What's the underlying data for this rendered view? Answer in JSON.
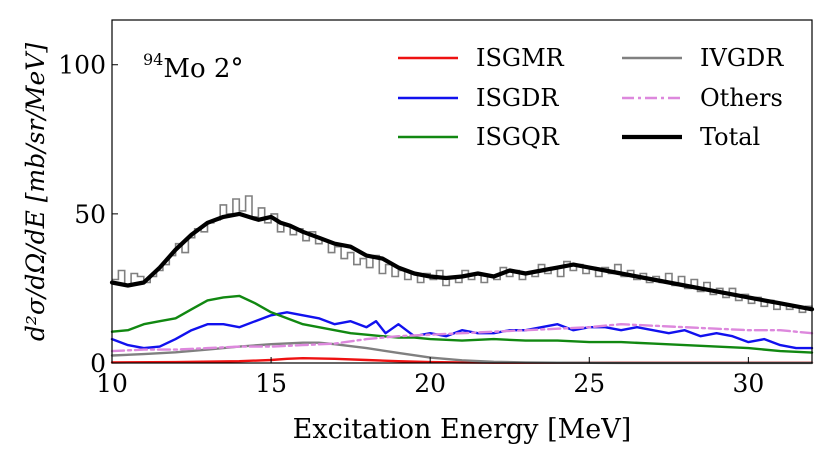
{
  "chart_data": {
    "type": "line",
    "annotation": {
      "nucleus_mass": "94",
      "nucleus": "Mo",
      "angle": "2°"
    },
    "xlabel": "Excitation Energy [MeV]",
    "ylabel": "d²σ/dΩ/dE [mb/sr/MeV]",
    "xlim": [
      10,
      32
    ],
    "ylim": [
      0,
      115
    ],
    "x_ticks": [
      10,
      15,
      20,
      25,
      30
    ],
    "y_ticks": [
      0,
      50,
      100
    ],
    "legend_position": "top-right",
    "data": {
      "name": "Data",
      "color": "#808080",
      "style": "step",
      "x": [
        10.0,
        10.2,
        10.4,
        10.6,
        10.8,
        11.0,
        11.2,
        11.4,
        11.6,
        11.8,
        12.0,
        12.2,
        12.4,
        12.6,
        12.8,
        13.0,
        13.2,
        13.4,
        13.6,
        13.8,
        14.0,
        14.2,
        14.4,
        14.6,
        14.8,
        15.0,
        15.2,
        15.4,
        15.6,
        15.8,
        16.0,
        16.2,
        16.4,
        16.6,
        16.8,
        17.0,
        17.2,
        17.4,
        17.6,
        17.8,
        18.0,
        18.2,
        18.4,
        18.6,
        18.8,
        19.0,
        19.2,
        19.4,
        19.6,
        19.8,
        20.0,
        20.2,
        20.4,
        20.6,
        20.8,
        21.0,
        21.2,
        21.4,
        21.6,
        21.8,
        22.0,
        22.2,
        22.4,
        22.6,
        22.8,
        23.0,
        23.2,
        23.4,
        23.6,
        23.8,
        24.0,
        24.2,
        24.4,
        24.6,
        24.8,
        25.0,
        25.2,
        25.4,
        25.6,
        25.8,
        26.0,
        26.2,
        26.4,
        26.6,
        26.8,
        27.0,
        27.2,
        27.4,
        27.6,
        27.8,
        28.0,
        28.2,
        28.4,
        28.6,
        28.8,
        29.0,
        29.2,
        29.4,
        29.6,
        29.8,
        30.0,
        30.2,
        30.4,
        30.6,
        30.8,
        31.0,
        31.2,
        31.4,
        31.6,
        31.8,
        32.0
      ],
      "y": [
        28,
        31,
        26,
        30,
        29,
        27,
        29,
        31,
        33,
        36,
        40,
        37,
        42,
        45,
        44,
        47,
        48,
        53,
        50,
        55,
        51,
        56,
        49,
        52,
        47,
        50,
        44,
        46,
        43,
        45,
        41,
        44,
        40,
        41,
        37,
        39,
        35,
        37,
        33,
        35,
        32,
        36,
        30,
        33,
        29,
        31,
        28,
        30,
        27,
        30,
        28,
        31,
        26,
        29,
        27,
        31,
        28,
        30,
        27,
        29,
        28,
        32,
        29,
        31,
        28,
        30,
        29,
        33,
        30,
        32,
        29,
        34,
        31,
        33,
        30,
        32,
        29,
        32,
        30,
        33,
        29,
        31,
        28,
        30,
        27,
        29,
        27,
        30,
        26,
        29,
        25,
        28,
        24,
        27,
        23,
        25,
        22,
        25,
        21,
        23,
        20,
        22,
        19,
        21,
        18,
        20,
        18,
        19,
        17,
        19,
        18
      ]
    },
    "series": [
      {
        "name": "ISGMR",
        "color": "#ee1111",
        "style": "solid",
        "x": [
          10,
          12,
          14,
          15,
          15.5,
          16,
          17,
          18,
          19,
          20,
          21,
          22,
          24,
          26,
          28,
          30,
          32
        ],
        "y": [
          0.2,
          0.3,
          0.6,
          1.0,
          1.4,
          1.6,
          1.4,
          1.0,
          0.6,
          0.3,
          0.2,
          0.1,
          0.1,
          0.1,
          0.1,
          0.1,
          0.1
        ]
      },
      {
        "name": "ISGDR",
        "color": "#1111ee",
        "style": "solid",
        "x": [
          10,
          10.5,
          11,
          11.5,
          12,
          12.5,
          13,
          13.5,
          14,
          14.5,
          15,
          15.5,
          16,
          16.5,
          17,
          17.5,
          18,
          18.3,
          18.6,
          19,
          19.5,
          20,
          20.5,
          21,
          21.5,
          22,
          22.5,
          23,
          23.5,
          24,
          24.5,
          25,
          25.5,
          26,
          26.5,
          27,
          27.5,
          28,
          28.5,
          29,
          29.5,
          30,
          30.5,
          31,
          31.5,
          32
        ],
        "y": [
          8,
          6,
          5,
          5.5,
          8,
          11,
          13,
          13,
          12,
          14,
          16,
          17,
          16,
          15,
          13,
          14,
          12,
          14,
          10,
          13,
          9,
          10,
          9,
          11,
          10,
          10,
          11,
          11,
          12,
          13,
          11,
          12,
          12,
          11,
          12,
          11,
          10,
          11,
          9,
          10,
          9,
          7,
          8,
          6,
          5,
          5
        ]
      },
      {
        "name": "ISGQR",
        "color": "#118811",
        "style": "solid",
        "x": [
          10,
          10.5,
          11,
          11.5,
          12,
          12.5,
          13,
          13.5,
          14,
          14.5,
          15,
          15.5,
          16,
          16.5,
          17,
          17.5,
          18,
          18.5,
          19,
          19.5,
          20,
          21,
          22,
          23,
          24,
          25,
          26,
          27,
          28,
          29,
          30,
          31,
          32
        ],
        "y": [
          10.5,
          11,
          13,
          14,
          15,
          18,
          21,
          22,
          22.5,
          20,
          17,
          15,
          13,
          12,
          11,
          10,
          9.5,
          9,
          8.5,
          8.5,
          8,
          7.5,
          8,
          7.5,
          7.5,
          7,
          7,
          6.5,
          6,
          5.5,
          5,
          4,
          3.5
        ]
      },
      {
        "name": "IVGDR",
        "color": "#808080",
        "style": "solid",
        "x": [
          10,
          11,
          12,
          13,
          14,
          15,
          16,
          16.5,
          17,
          18,
          19,
          20,
          21,
          22,
          23,
          24,
          26,
          28,
          30,
          32
        ],
        "y": [
          2.5,
          3,
          3.6,
          4.5,
          5.5,
          6.3,
          6.8,
          6.8,
          6.3,
          5,
          3.4,
          1.8,
          0.9,
          0.4,
          0.2,
          0.1,
          0.05,
          0.05,
          0.05,
          0.05
        ]
      },
      {
        "name": "Others",
        "color": "#dd88dd",
        "style": "dashdot",
        "x": [
          10,
          11,
          12,
          13,
          14,
          15,
          16,
          17,
          18,
          19,
          20,
          21,
          22,
          23,
          24,
          25,
          26,
          27,
          28,
          29,
          30,
          31,
          32
        ],
        "y": [
          4,
          4.5,
          4.5,
          5,
          5.5,
          5.5,
          6,
          6.5,
          8,
          9,
          9.5,
          10,
          10.5,
          11,
          11.5,
          12,
          13,
          12.5,
          12,
          11.5,
          11,
          11,
          10
        ]
      },
      {
        "name": "Total",
        "color": "#000000",
        "style": "thick",
        "x": [
          10,
          10.5,
          11,
          11.5,
          12,
          12.5,
          13,
          13.5,
          14,
          14.3,
          14.6,
          15,
          15.3,
          15.6,
          16,
          16.5,
          17,
          17.5,
          18,
          18.5,
          19,
          19.5,
          20,
          20.5,
          21,
          21.5,
          22,
          22.5,
          23,
          23.5,
          24,
          24.5,
          25,
          25.5,
          26,
          26.5,
          27,
          27.5,
          28,
          28.5,
          29,
          29.5,
          30,
          30.5,
          31,
          31.5,
          32
        ],
        "y": [
          27,
          26,
          27,
          32,
          38,
          43,
          47,
          49,
          50,
          49,
          48,
          49,
          47,
          46,
          44,
          42,
          40,
          39,
          36,
          35,
          32,
          30,
          29,
          28.5,
          29,
          30,
          29,
          31,
          30,
          31,
          32,
          33,
          32,
          31,
          30,
          29,
          28,
          27,
          26,
          25,
          24,
          23,
          22,
          21,
          20,
          19,
          18
        ]
      }
    ]
  }
}
